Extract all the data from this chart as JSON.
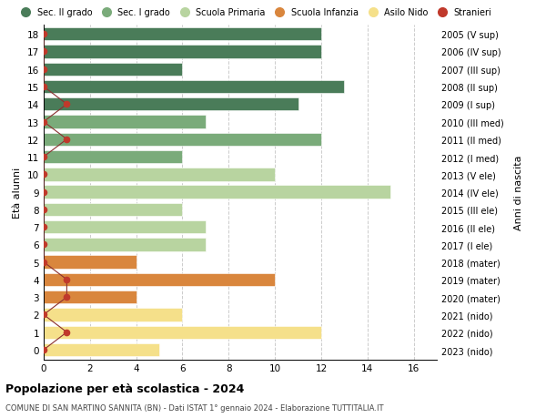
{
  "ages": [
    18,
    17,
    16,
    15,
    14,
    13,
    12,
    11,
    10,
    9,
    8,
    7,
    6,
    5,
    4,
    3,
    2,
    1,
    0
  ],
  "years": [
    "2005 (V sup)",
    "2006 (IV sup)",
    "2007 (III sup)",
    "2008 (II sup)",
    "2009 (I sup)",
    "2010 (III med)",
    "2011 (II med)",
    "2012 (I med)",
    "2013 (V ele)",
    "2014 (IV ele)",
    "2015 (III ele)",
    "2016 (II ele)",
    "2017 (I ele)",
    "2018 (mater)",
    "2019 (mater)",
    "2020 (mater)",
    "2021 (nido)",
    "2022 (nido)",
    "2023 (nido)"
  ],
  "values": [
    12,
    12,
    6,
    13,
    11,
    7,
    12,
    6,
    10,
    15,
    6,
    7,
    7,
    4,
    10,
    4,
    6,
    12,
    5
  ],
  "stranieri_vals": [
    0,
    0,
    0,
    0,
    1,
    0,
    1,
    0,
    0,
    0,
    0,
    0,
    0,
    0,
    1,
    1,
    0,
    1,
    0
  ],
  "bar_colors": [
    "#4a7c59",
    "#4a7c59",
    "#4a7c59",
    "#4a7c59",
    "#4a7c59",
    "#7aab7a",
    "#7aab7a",
    "#7aab7a",
    "#b8d4a0",
    "#b8d4a0",
    "#b8d4a0",
    "#b8d4a0",
    "#b8d4a0",
    "#d9863d",
    "#d9863d",
    "#d9863d",
    "#f5e08a",
    "#f5e08a",
    "#f5e08a"
  ],
  "legend_colors": [
    "#4a7c59",
    "#7aab7a",
    "#b8d4a0",
    "#d9863d",
    "#f5e08a",
    "#c0392b"
  ],
  "legend_labels": [
    "Sec. II grado",
    "Sec. I grado",
    "Scuola Primaria",
    "Scuola Infanzia",
    "Asilo Nido",
    "Stranieri"
  ],
  "xlabel_vals": [
    0,
    2,
    4,
    6,
    8,
    10,
    12,
    14,
    16
  ],
  "xlim": [
    0,
    17
  ],
  "title1": "Popolazione per età scolastica - 2024",
  "title2": "COMUNE DI SAN MARTINO SANNITA (BN) - Dati ISTAT 1° gennaio 2024 - Elaborazione TUTTITALIA.IT",
  "ylabel_left": "Età alunni",
  "ylabel_right": "Anni di nascita",
  "bg_color": "#ffffff",
  "grid_color": "#cccccc",
  "stranieri_line_color": "#8b3030",
  "stranieri_dot_color": "#c0392b"
}
